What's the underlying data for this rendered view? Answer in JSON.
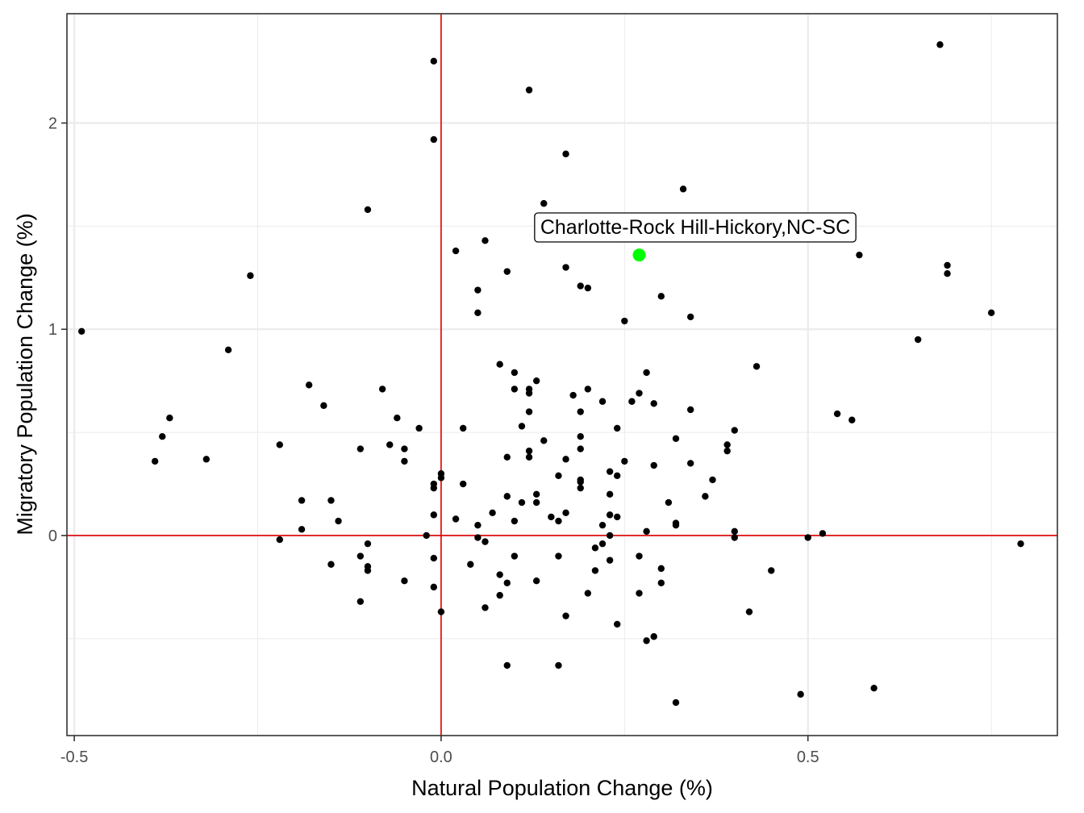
{
  "chart_data": {
    "type": "scatter",
    "title": "",
    "xlabel": "Natural Population Change (%)",
    "ylabel": "Migratory Population Change (%)",
    "xlim": [
      -0.51,
      0.84
    ],
    "ylim": [
      -0.97,
      2.53
    ],
    "x_ticks": [
      -0.5,
      0.0,
      0.5
    ],
    "x_tick_labels": [
      "-0.5",
      "0.0",
      "0.5"
    ],
    "y_ticks": [
      0,
      1,
      2
    ],
    "y_tick_labels": [
      "0",
      "1",
      "2"
    ],
    "x_minor_ticks": [
      -0.25,
      0.25,
      0.75
    ],
    "y_minor_ticks": [
      -0.5,
      0.5,
      1.5
    ],
    "reference_lines": {
      "x": 0,
      "y": 0,
      "color": "#e00000"
    },
    "colors": {
      "point": "#000000",
      "highlight": "#00ff00",
      "panel_border": "#333333",
      "grid": "#ebebeb"
    },
    "highlight": {
      "label": "Charlotte-Rock Hill-Hickory,NC-SC",
      "x": 0.27,
      "y": 1.36
    },
    "points": [
      [
        -0.01,
        2.3
      ],
      [
        0.12,
        2.16
      ],
      [
        0.68,
        2.38
      ],
      [
        -0.01,
        1.92
      ],
      [
        0.17,
        1.85
      ],
      [
        0.33,
        1.68
      ],
      [
        0.14,
        1.61
      ],
      [
        -0.1,
        1.58
      ],
      [
        0.06,
        1.43
      ],
      [
        0.02,
        1.38
      ],
      [
        0.57,
        1.36
      ],
      [
        0.69,
        1.31
      ],
      [
        0.69,
        1.27
      ],
      [
        0.17,
        1.3
      ],
      [
        0.09,
        1.28
      ],
      [
        -0.26,
        1.26
      ],
      [
        0.19,
        1.21
      ],
      [
        0.2,
        1.2
      ],
      [
        0.05,
        1.19
      ],
      [
        0.3,
        1.16
      ],
      [
        0.05,
        1.08
      ],
      [
        0.75,
        1.08
      ],
      [
        0.34,
        1.06
      ],
      [
        0.25,
        1.04
      ],
      [
        -0.49,
        0.99
      ],
      [
        0.65,
        0.95
      ],
      [
        -0.29,
        0.9
      ],
      [
        0.08,
        0.83
      ],
      [
        0.43,
        0.82
      ],
      [
        0.1,
        0.79
      ],
      [
        0.28,
        0.79
      ],
      [
        0.13,
        0.75
      ],
      [
        -0.18,
        0.73
      ],
      [
        0.12,
        0.71
      ],
      [
        0.1,
        0.71
      ],
      [
        0.2,
        0.71
      ],
      [
        -0.08,
        0.71
      ],
      [
        0.12,
        0.69
      ],
      [
        0.27,
        0.69
      ],
      [
        0.18,
        0.68
      ],
      [
        0.26,
        0.65
      ],
      [
        0.22,
        0.65
      ],
      [
        0.29,
        0.64
      ],
      [
        -0.16,
        0.63
      ],
      [
        0.54,
        0.59
      ],
      [
        0.34,
        0.61
      ],
      [
        0.19,
        0.6
      ],
      [
        0.12,
        0.6
      ],
      [
        -0.06,
        0.57
      ],
      [
        0.56,
        0.56
      ],
      [
        -0.37,
        0.57
      ],
      [
        0.11,
        0.53
      ],
      [
        0.03,
        0.52
      ],
      [
        -0.03,
        0.52
      ],
      [
        0.24,
        0.52
      ],
      [
        0.4,
        0.51
      ],
      [
        0.19,
        0.48
      ],
      [
        -0.38,
        0.48
      ],
      [
        0.32,
        0.47
      ],
      [
        0.14,
        0.46
      ],
      [
        -0.22,
        0.44
      ],
      [
        -0.07,
        0.44
      ],
      [
        0.39,
        0.44
      ],
      [
        -0.11,
        0.42
      ],
      [
        0.19,
        0.42
      ],
      [
        -0.05,
        0.42
      ],
      [
        0.39,
        0.41
      ],
      [
        0.12,
        0.41
      ],
      [
        -0.39,
        0.36
      ],
      [
        -0.32,
        0.37
      ],
      [
        0.09,
        0.38
      ],
      [
        0.12,
        0.38
      ],
      [
        0.17,
        0.37
      ],
      [
        0.25,
        0.36
      ],
      [
        -0.05,
        0.36
      ],
      [
        0.34,
        0.35
      ],
      [
        0.29,
        0.34
      ],
      [
        0.23,
        0.31
      ],
      [
        0.0,
        0.3
      ],
      [
        0.0,
        0.28
      ],
      [
        0.16,
        0.29
      ],
      [
        0.24,
        0.29
      ],
      [
        0.19,
        0.27
      ],
      [
        0.19,
        0.26
      ],
      [
        0.37,
        0.27
      ],
      [
        -0.01,
        0.25
      ],
      [
        -0.01,
        0.23
      ],
      [
        0.03,
        0.25
      ],
      [
        0.19,
        0.23
      ],
      [
        0.13,
        0.2
      ],
      [
        0.23,
        0.2
      ],
      [
        0.09,
        0.19
      ],
      [
        0.36,
        0.19
      ],
      [
        -0.19,
        0.17
      ],
      [
        -0.15,
        0.17
      ],
      [
        0.11,
        0.16
      ],
      [
        0.13,
        0.16
      ],
      [
        0.31,
        0.16
      ],
      [
        0.07,
        0.11
      ],
      [
        0.17,
        0.11
      ],
      [
        0.23,
        0.1
      ],
      [
        -0.01,
        0.1
      ],
      [
        0.15,
        0.09
      ],
      [
        0.24,
        0.09
      ],
      [
        0.02,
        0.08
      ],
      [
        -0.14,
        0.07
      ],
      [
        0.1,
        0.07
      ],
      [
        0.16,
        0.07
      ],
      [
        0.22,
        0.05
      ],
      [
        0.32,
        0.06
      ],
      [
        0.32,
        0.05
      ],
      [
        0.05,
        0.05
      ],
      [
        -0.19,
        0.03
      ],
      [
        0.28,
        0.02
      ],
      [
        0.4,
        0.02
      ],
      [
        0.52,
        0.01
      ],
      [
        -0.02,
        0.0
      ],
      [
        0.23,
        0.0
      ],
      [
        0.4,
        -0.01
      ],
      [
        0.5,
        -0.01
      ],
      [
        -0.22,
        -0.02
      ],
      [
        0.05,
        -0.01
      ],
      [
        0.06,
        -0.03
      ],
      [
        -0.1,
        -0.04
      ],
      [
        0.22,
        -0.04
      ],
      [
        0.79,
        -0.04
      ],
      [
        0.21,
        -0.06
      ],
      [
        -0.11,
        -0.1
      ],
      [
        -0.01,
        -0.11
      ],
      [
        0.1,
        -0.1
      ],
      [
        0.16,
        -0.1
      ],
      [
        0.27,
        -0.1
      ],
      [
        0.23,
        -0.12
      ],
      [
        -0.1,
        -0.15
      ],
      [
        -0.1,
        -0.17
      ],
      [
        -0.15,
        -0.14
      ],
      [
        0.04,
        -0.14
      ],
      [
        0.3,
        -0.16
      ],
      [
        0.45,
        -0.17
      ],
      [
        0.21,
        -0.17
      ],
      [
        0.08,
        -0.19
      ],
      [
        -0.05,
        -0.22
      ],
      [
        0.09,
        -0.23
      ],
      [
        0.13,
        -0.22
      ],
      [
        0.3,
        -0.23
      ],
      [
        -0.01,
        -0.25
      ],
      [
        0.08,
        -0.29
      ],
      [
        0.2,
        -0.28
      ],
      [
        0.27,
        -0.28
      ],
      [
        -0.11,
        -0.32
      ],
      [
        0.06,
        -0.35
      ],
      [
        0.42,
        -0.37
      ],
      [
        0.0,
        -0.37
      ],
      [
        0.17,
        -0.39
      ],
      [
        0.24,
        -0.43
      ],
      [
        0.29,
        -0.49
      ],
      [
        0.28,
        -0.51
      ],
      [
        0.09,
        -0.63
      ],
      [
        0.16,
        -0.63
      ],
      [
        0.59,
        -0.74
      ],
      [
        0.49,
        -0.77
      ],
      [
        0.32,
        -0.81
      ]
    ]
  }
}
